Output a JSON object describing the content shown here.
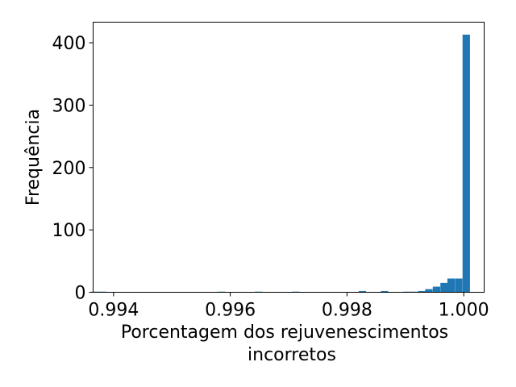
{
  "chart_data": {
    "type": "bar",
    "subtype": "histogram",
    "title": "",
    "xlabel_lines": [
      "Porcentagem dos rejuvenescimentos",
      "incorretos"
    ],
    "ylabel": "Frequência",
    "xlim": [
      0.99365,
      1.00035
    ],
    "ylim": [
      0,
      433
    ],
    "bin_width": 0.000127,
    "x_ticks": [
      {
        "value": 0.994,
        "label": "0.994"
      },
      {
        "value": 0.996,
        "label": "0.996"
      },
      {
        "value": 0.998,
        "label": "0.998"
      },
      {
        "value": 1.0,
        "label": "1.000"
      }
    ],
    "y_ticks": [
      {
        "value": 0,
        "label": "0"
      },
      {
        "value": 100,
        "label": "100"
      },
      {
        "value": 200,
        "label": "200"
      },
      {
        "value": 300,
        "label": "300"
      },
      {
        "value": 400,
        "label": "400"
      }
    ],
    "bins": [
      {
        "x": 0.99362,
        "count": 1
      },
      {
        "x": 0.99375,
        "count": 1
      },
      {
        "x": 0.99579,
        "count": 1
      },
      {
        "x": 0.99642,
        "count": 1
      },
      {
        "x": 0.99706,
        "count": 1
      },
      {
        "x": 0.9982,
        "count": 2
      },
      {
        "x": 0.99858,
        "count": 2
      },
      {
        "x": 0.99896,
        "count": 1
      },
      {
        "x": 0.99909,
        "count": 1
      },
      {
        "x": 0.99922,
        "count": 2
      },
      {
        "x": 0.99934,
        "count": 5
      },
      {
        "x": 0.99947,
        "count": 9
      },
      {
        "x": 0.9996,
        "count": 15
      },
      {
        "x": 0.99972,
        "count": 22
      },
      {
        "x": 0.99985,
        "count": 22
      },
      {
        "x": 0.99998,
        "count": 413
      }
    ],
    "grid": false,
    "legend": false,
    "bar_color": "#1f77b4"
  }
}
